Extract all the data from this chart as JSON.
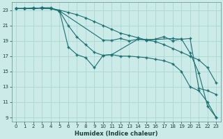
{
  "title": "",
  "xlabel": "Humidex (Indice chaleur)",
  "background_color": "#cceae7",
  "line_color": "#1a7070",
  "grid_color": "#a8d8d4",
  "xlim": [
    -0.5,
    23.5
  ],
  "ylim": [
    8.5,
    24.0
  ],
  "xticks": [
    0,
    1,
    2,
    3,
    4,
    5,
    6,
    7,
    8,
    9,
    10,
    11,
    12,
    13,
    14,
    15,
    16,
    17,
    18,
    19,
    20,
    21,
    22,
    23
  ],
  "yticks": [
    9,
    11,
    13,
    15,
    17,
    19,
    21,
    23
  ],
  "lines": [
    {
      "x": [
        0,
        1,
        2,
        3,
        4,
        5,
        10,
        11,
        12,
        13,
        14,
        15,
        16,
        17,
        18,
        19,
        20,
        21,
        22,
        23
      ],
      "y": [
        23.2,
        23.2,
        23.3,
        23.2,
        23.2,
        22.9,
        19.1,
        19.05,
        19.3,
        19.0,
        19.2,
        19.15,
        19.2,
        19.55,
        19.0,
        19.25,
        17.4,
        14.8,
        10.5,
        9.0
      ]
    },
    {
      "x": [
        0,
        1,
        2,
        3,
        4,
        5,
        6,
        7,
        8,
        9,
        10,
        11,
        12,
        13,
        14,
        15,
        16,
        17,
        18,
        19,
        20,
        21,
        22,
        23
      ],
      "y": [
        23.2,
        23.2,
        23.2,
        23.3,
        23.2,
        23.0,
        22.7,
        22.4,
        22.0,
        21.5,
        21.0,
        20.5,
        20.0,
        19.7,
        19.4,
        19.1,
        18.9,
        18.5,
        18.0,
        17.5,
        17.0,
        16.5,
        15.5,
        13.5
      ]
    },
    {
      "x": [
        0,
        1,
        2,
        3,
        4,
        5,
        6,
        7,
        8,
        9,
        10,
        11,
        12,
        13,
        14,
        15,
        16,
        17,
        18,
        19,
        20,
        21,
        22,
        23
      ],
      "y": [
        23.2,
        23.2,
        23.2,
        23.3,
        23.3,
        22.9,
        21.0,
        19.5,
        18.5,
        17.5,
        17.1,
        17.2,
        17.0,
        17.0,
        16.9,
        16.8,
        16.6,
        16.4,
        16.0,
        15.0,
        13.0,
        12.5,
        11.0,
        9.0
      ]
    },
    {
      "x": [
        0,
        1,
        2,
        3,
        4,
        5,
        6,
        7,
        8,
        9,
        10,
        11,
        14,
        15,
        18,
        19,
        20,
        21,
        22,
        23
      ],
      "y": [
        23.2,
        23.2,
        23.2,
        23.3,
        23.2,
        22.9,
        18.2,
        17.2,
        16.8,
        15.5,
        17.1,
        17.2,
        19.2,
        19.1,
        19.3,
        19.2,
        19.3,
        12.8,
        12.5,
        12.0
      ]
    }
  ]
}
